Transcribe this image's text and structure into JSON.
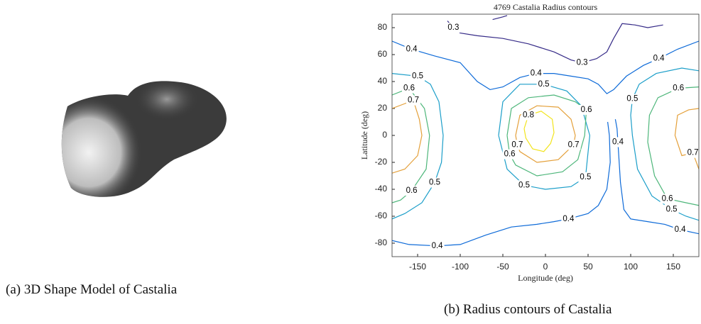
{
  "captions": [
    "(a) 3D Shape Model of Castalia",
    "(b) Radius contours of Castalia"
  ],
  "chart_data": {
    "type": "contour",
    "title": "4769 Castalia Radius contours",
    "xlabel": "Longitude (deg)",
    "ylabel": "Latitude (deg)",
    "xlim": [
      -180,
      180
    ],
    "ylim": [
      -90,
      90
    ],
    "xticks": [
      -150,
      -100,
      -50,
      0,
      50,
      100,
      150
    ],
    "yticks": [
      -80,
      -60,
      -40,
      -20,
      0,
      20,
      40,
      60,
      80
    ],
    "contours": [
      {
        "level": 0.3,
        "color": "#352a87",
        "lines": [
          {
            "lon": [
              -115,
              -108,
              -100,
              -80,
              -50,
              -20,
              10,
              30,
              43,
              60,
              72,
              80,
              90,
              105,
              120,
              138
            ],
            "lat": [
              85,
              80,
              76,
              74,
              72,
              68,
              62,
              56,
              54,
              57,
              62,
              72,
              83,
              82,
              80,
              82
            ]
          },
          {
            "lon": [
              -62,
              -50,
              -45
            ],
            "lat": [
              86,
              88,
              89
            ]
          }
        ]
      },
      {
        "level": 0.4,
        "color": "#0d6ad8",
        "lines": [
          {
            "lon": [
              -180,
              -157,
              -130,
              -100,
              -80,
              -65,
              -50,
              -30,
              -11,
              10,
              30,
              50,
              62,
              72,
              80,
              95,
              115,
              133,
              155,
              180
            ],
            "lat": [
              70,
              64,
              59,
              54,
              40,
              34,
              36,
              43,
              46,
              46,
              44,
              42,
              38,
              31,
              34,
              44,
              52,
              57,
              64,
              70
            ]
          },
          {
            "lon": [
              -180,
              -160,
              -127,
              -100,
              -70,
              -40,
              -10,
              10,
              27,
              50,
              62,
              72,
              76,
              75,
              73
            ],
            "lat": [
              -78,
              -81,
              -82,
              -81,
              -74,
              -68,
              -66,
              -64,
              -62,
              -58,
              -52,
              -40,
              -20,
              0,
              10
            ]
          },
          {
            "lon": [
              82,
              84,
              85,
              86,
              88,
              92,
              100,
              120,
              140,
              158,
              180
            ],
            "lat": [
              12,
              5,
              -5,
              -15,
              -35,
              -55,
              -62,
              -64,
              -66,
              -70,
              -73
            ]
          }
        ]
      },
      {
        "level": 0.5,
        "color": "#1b9ec9",
        "lines": [
          {
            "lon": [
              -180,
              -150,
              -135,
              -125,
              -120,
              -122,
              -130,
              -145,
              -165,
              -180
            ],
            "lat": [
              46,
              44,
              38,
              25,
              0,
              -20,
              -35,
              -50,
              -58,
              -62
            ]
          },
          {
            "lon": [
              -55,
              -50,
              -30,
              -2,
              25,
              42,
              52,
              47,
              30,
              0,
              -25,
              -45,
              -55
            ],
            "lat": [
              0,
              25,
              38,
              38,
              33,
              22,
              0,
              -31,
              -38,
              -40,
              -37,
              -25,
              0
            ]
          },
          {
            "lon": [
              180,
              165,
              148,
              125,
              108,
              102,
              100,
              102,
              110,
              130,
              160,
              180
            ],
            "lat": [
              -63,
              -60,
              -55,
              -45,
              -25,
              0,
              15,
              27,
              38,
              46,
              50,
              48
            ]
          }
        ]
      },
      {
        "level": 0.6,
        "color": "#4db67a",
        "lines": [
          {
            "lon": [
              -180,
              -160,
              -142,
              -136,
              -140,
              -157,
              -170,
              -180
            ],
            "lat": [
              30,
              35,
              20,
              0,
              -25,
              -41,
              -48,
              -50
            ]
          },
          {
            "lon": [
              -45,
              -40,
              -20,
              10,
              35,
              48,
              46,
              38,
              20,
              -10,
              -35,
              -42,
              -45
            ],
            "lat": [
              0,
              20,
              28,
              30,
              25,
              19,
              0,
              -18,
              -27,
              -30,
              -22,
              -14,
              0
            ]
          },
          {
            "lon": [
              180,
              165,
              143,
              128,
              120,
              122,
              132,
              156,
              180
            ],
            "lat": [
              -52,
              -50,
              -47,
              -30,
              -5,
              15,
              28,
              35,
              36
            ]
          }
        ]
      },
      {
        "level": 0.7,
        "color": "#e4a03a",
        "lines": [
          {
            "lon": [
              -180,
              -155,
              -148,
              -145,
              -150,
              -165,
              -180
            ],
            "lat": [
              20,
              26,
              12,
              0,
              -15,
              -25,
              -28
            ]
          },
          {
            "lon": [
              -35,
              -30,
              -10,
              15,
              30,
              35,
              33,
              15,
              -10,
              -30,
              -33,
              -35
            ],
            "lat": [
              0,
              15,
              22,
              21,
              12,
              0,
              -7,
              -18,
              -20,
              -12,
              -7,
              0
            ]
          },
          {
            "lon": [
              180,
              173,
              160,
              152,
              155,
              168,
              180
            ],
            "lat": [
              -25,
              -13,
              -15,
              0,
              15,
              19,
              20
            ]
          }
        ]
      },
      {
        "level": 0.8,
        "color": "#f2e41c",
        "lines": [
          {
            "lon": [
              -25,
              -20,
              -5,
              8,
              10,
              6,
              -2,
              -15,
              -23,
              -25
            ],
            "lat": [
              5,
              15,
              18,
              12,
              2,
              -6,
              -12,
              -10,
              -2,
              5
            ]
          }
        ]
      }
    ]
  }
}
